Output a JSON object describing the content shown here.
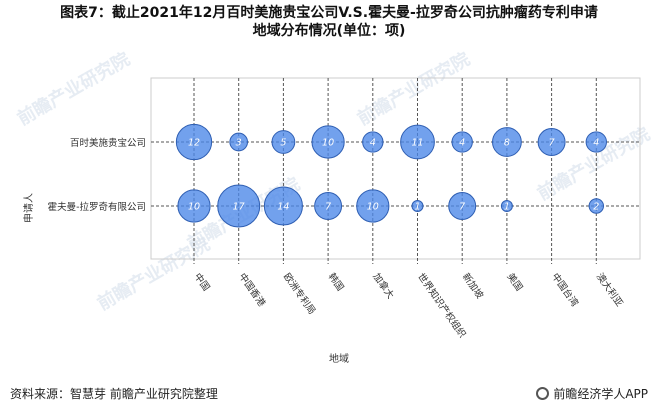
{
  "title": {
    "line1": "图表7：截止2021年12月百时美施贵宝公司V.S.霍夫曼-拉罗奇公司抗肿瘤药专利申请",
    "line2": "地域分布情况(单位：项)"
  },
  "footer": {
    "source": "资料来源：智慧芽 前瞻产业研究院整理",
    "brand": "前瞻经济学人APP"
  },
  "watermarks": [
    "前瞻产业研究院",
    "前瞻产业研究院",
    "前瞻产业研究院",
    "前瞻产业研究院",
    "前瞻产业研究院"
  ],
  "colors": {
    "bubble": "#4a86e8",
    "bubble_edge": "#2f5fb3",
    "grid": "#555555",
    "plot_border": "#cccccc"
  },
  "chart_data": {
    "type": "scatter",
    "subtype": "bubble",
    "xlabel": "地域",
    "ylabel": "申请人",
    "categories": [
      "中国",
      "中国香港",
      "欧洲专利局",
      "韩国",
      "加拿大",
      "世界知识产权组织",
      "新加坡",
      "美国",
      "中国台湾",
      "澳大利亚"
    ],
    "y_categories": [
      "百时美施贵宝公司",
      "霍夫曼-拉罗奇有限公司"
    ],
    "series": [
      {
        "name": "百时美施贵宝公司",
        "values": [
          12,
          3,
          5,
          10,
          4,
          11,
          4,
          8,
          7,
          4
        ]
      },
      {
        "name": "霍夫曼-拉罗奇有限公司",
        "values": [
          10,
          17,
          14,
          7,
          10,
          1,
          7,
          1,
          null,
          2
        ]
      }
    ],
    "grid": true,
    "legend": "none"
  }
}
